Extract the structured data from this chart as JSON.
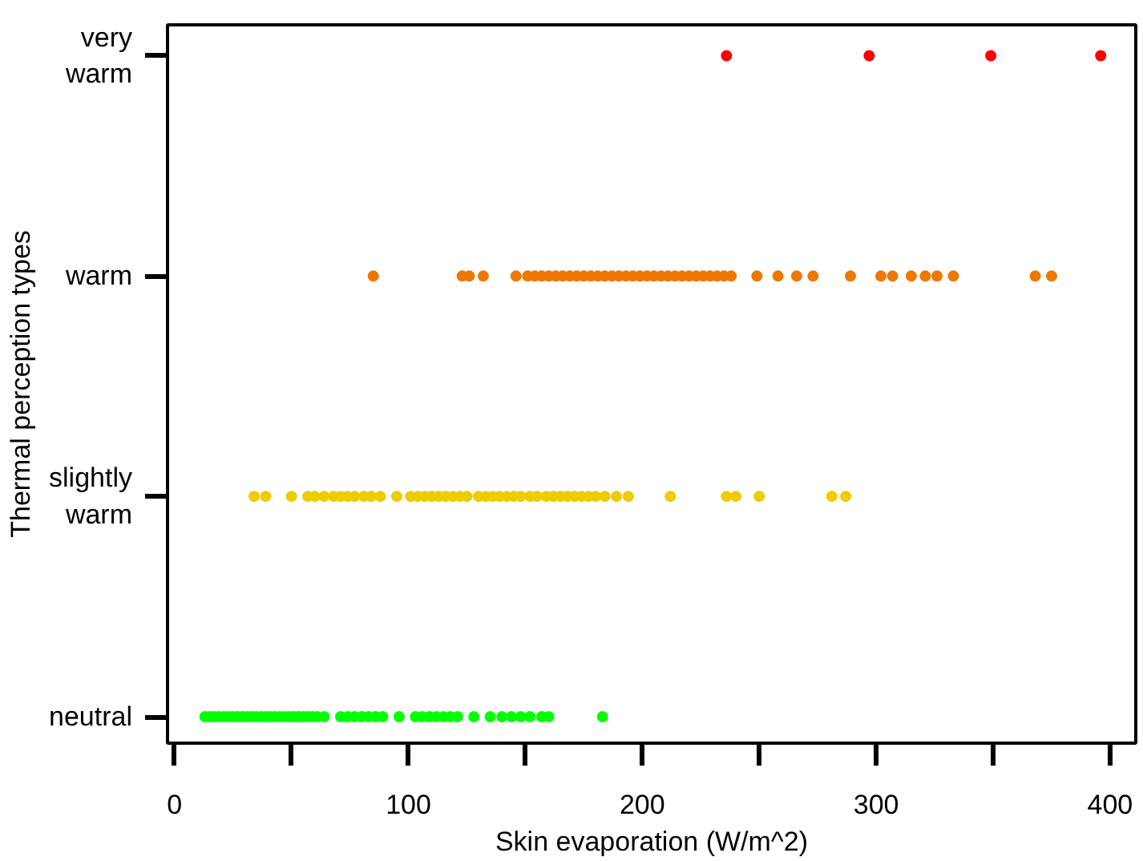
{
  "chart_data": {
    "type": "scatter",
    "orientation": "horizontal",
    "xlabel": "Skin evaporation (W/m^2)",
    "ylabel": "Thermal perception types",
    "categories": [
      "very warm",
      "warm",
      "slightly warm",
      "neutral"
    ],
    "xlim": [
      -3,
      411
    ],
    "xticks": [
      0,
      {
        "value": 50,
        "label": null
      },
      100,
      {
        "value": 150,
        "label": null
      },
      200,
      {
        "value": 250,
        "label": null
      },
      300,
      {
        "value": 350,
        "label": null
      },
      400
    ],
    "marker": "circle",
    "grid": false,
    "series": [
      {
        "color": "#ff0000",
        "x": [
          "very warm",
          "very warm",
          "very warm",
          "very warm"
        ],
        "values": [
          236,
          297,
          349,
          396
        ]
      },
      {
        "color": "#ee7700",
        "x": [
          "warm",
          "warm",
          "warm",
          "warm",
          "warm",
          "warm",
          "warm",
          "warm",
          "warm",
          "warm",
          "warm",
          "warm",
          "warm",
          "warm",
          "warm",
          "warm",
          "warm",
          "warm",
          "warm",
          "warm",
          "warm",
          "warm",
          "warm",
          "warm",
          "warm",
          "warm",
          "warm",
          "warm",
          "warm",
          "warm",
          "warm",
          "warm",
          "warm",
          "warm",
          "warm",
          "warm",
          "warm",
          "warm",
          "warm",
          "warm",
          "warm",
          "warm",
          "warm",
          "warm",
          "warm",
          "warm",
          "warm",
          "warm"
        ],
        "values": [
          85,
          123,
          126,
          132,
          146,
          151,
          154,
          157,
          160,
          163,
          166,
          169,
          172,
          175,
          178,
          181,
          184,
          187,
          190,
          193,
          196,
          199,
          202,
          205,
          208,
          211,
          214,
          217,
          220,
          223,
          226,
          229,
          232,
          235,
          238,
          249,
          258,
          266,
          273,
          289,
          302,
          307,
          315,
          321,
          326,
          333,
          368,
          375
        ]
      },
      {
        "color": "#eecc00",
        "x": [
          "slightly warm",
          "slightly warm",
          "slightly warm",
          "slightly warm",
          "slightly warm",
          "slightly warm",
          "slightly warm",
          "slightly warm",
          "slightly warm",
          "slightly warm",
          "slightly warm",
          "slightly warm",
          "slightly warm",
          "slightly warm",
          "slightly warm",
          "slightly warm",
          "slightly warm",
          "slightly warm",
          "slightly warm",
          "slightly warm",
          "slightly warm",
          "slightly warm",
          "slightly warm",
          "slightly warm",
          "slightly warm",
          "slightly warm",
          "slightly warm",
          "slightly warm",
          "slightly warm",
          "slightly warm",
          "slightly warm",
          "slightly warm",
          "slightly warm",
          "slightly warm",
          "slightly warm",
          "slightly warm",
          "slightly warm",
          "slightly warm",
          "slightly warm",
          "slightly warm",
          "slightly warm",
          "slightly warm",
          "slightly warm",
          "slightly warm",
          "slightly warm",
          "slightly warm",
          "slightly warm",
          "slightly warm",
          "slightly warm"
        ],
        "values": [
          34,
          39,
          50,
          57,
          60,
          64,
          68,
          71,
          74,
          77,
          81,
          84,
          88,
          95,
          101,
          104,
          107,
          110,
          113,
          116,
          119,
          122,
          125,
          130,
          133,
          136,
          139,
          142,
          145,
          148,
          152,
          155,
          159,
          162,
          165,
          168,
          171,
          174,
          177,
          180,
          184,
          189,
          194,
          212,
          236,
          240,
          250,
          281,
          287
        ]
      },
      {
        "color": "#00ff00",
        "x": [
          "neutral",
          "neutral",
          "neutral",
          "neutral",
          "neutral",
          "neutral",
          "neutral",
          "neutral",
          "neutral",
          "neutral",
          "neutral",
          "neutral",
          "neutral",
          "neutral",
          "neutral",
          "neutral",
          "neutral",
          "neutral",
          "neutral",
          "neutral",
          "neutral",
          "neutral",
          "neutral",
          "neutral",
          "neutral",
          "neutral",
          "neutral",
          "neutral",
          "neutral",
          "neutral",
          "neutral",
          "neutral",
          "neutral",
          "neutral",
          "neutral",
          "neutral",
          "neutral",
          "neutral",
          "neutral",
          "neutral",
          "neutral",
          "neutral",
          "neutral",
          "neutral",
          "neutral",
          "neutral",
          "neutral",
          "neutral",
          "neutral",
          "neutral"
        ],
        "values": [
          13,
          15,
          17,
          19,
          21,
          23,
          25,
          27,
          29,
          31,
          33,
          35,
          37,
          39,
          41,
          43,
          45,
          47,
          49,
          51,
          53,
          55,
          57,
          59,
          61,
          64,
          71,
          74,
          77,
          80,
          83,
          86,
          89,
          96,
          103,
          106,
          109,
          112,
          115,
          118,
          121,
          128,
          135,
          140,
          144,
          148,
          152,
          157,
          160,
          183
        ]
      }
    ]
  }
}
